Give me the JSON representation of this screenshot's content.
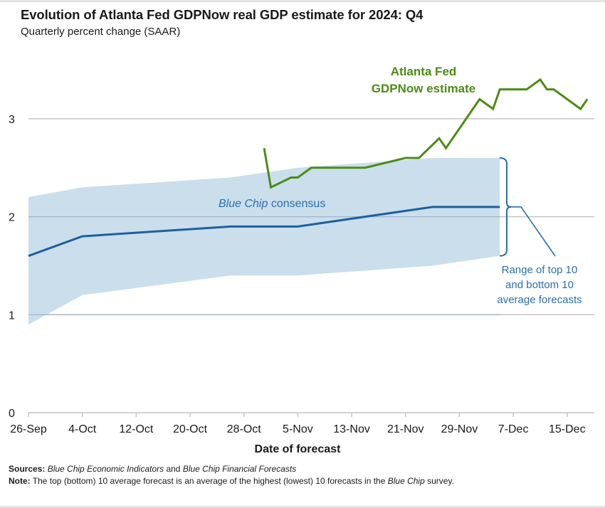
{
  "title": "Evolution of Atlanta Fed GDPNow real GDP estimate for 2024: Q4",
  "subtitle": "Quarterly percent change (SAAR)",
  "footer": {
    "sources_label": "Sources:",
    "sources_italic_1": "Blue Chip Economic Indicators",
    "sources_and": " and ",
    "sources_italic_2": "Blue Chip Financial Forecasts",
    "note_label": "Note:",
    "note_text": " The top (bottom) 10 average forecast is an average of the highest (lowest) 10 forecasts in the ",
    "note_italic": "Blue Chip",
    "note_end": " survey."
  },
  "chart_data": {
    "type": "line",
    "title": "Evolution of Atlanta Fed GDPNow real GDP estimate for 2024: Q4",
    "subtitle": "Quarterly percent change (SAAR)",
    "xlabel": "Date of forecast",
    "ylabel": "",
    "x_ticks": [
      "26-Sep",
      "4-Oct",
      "12-Oct",
      "20-Oct",
      "28-Oct",
      "5-Nov",
      "13-Nov",
      "21-Nov",
      "29-Nov",
      "7-Dec",
      "15-Dec"
    ],
    "x_start_day": 0,
    "x_end_day": 84,
    "x_tick_step_days": 8,
    "x_unit": "days since 26-Sep",
    "y_ticks": [
      0,
      1,
      2,
      3
    ],
    "ylim": [
      0,
      3.6
    ],
    "grid": "horizontal",
    "series": [
      {
        "name": "Atlanta Fed GDPNow estimate",
        "label_lines": [
          "Atlanta Fed",
          "GDPNow estimate"
        ],
        "color": "#4c8c14",
        "points": [
          [
            35,
            2.7
          ],
          [
            36,
            2.3
          ],
          [
            39,
            2.4
          ],
          [
            40,
            2.4
          ],
          [
            42,
            2.5
          ],
          [
            50,
            2.5
          ],
          [
            56,
            2.6
          ],
          [
            58,
            2.6
          ],
          [
            61,
            2.8
          ],
          [
            62,
            2.7
          ],
          [
            67,
            3.2
          ],
          [
            69,
            3.1
          ],
          [
            70,
            3.3
          ],
          [
            74,
            3.3
          ],
          [
            76,
            3.4
          ],
          [
            77,
            3.3
          ],
          [
            78,
            3.3
          ],
          [
            82,
            3.1
          ],
          [
            83,
            3.2
          ]
        ]
      },
      {
        "name": "Blue Chip consensus",
        "label_italic": "Blue Chip",
        "label_rest": " consensus",
        "color": "#1f5f9e",
        "points": [
          [
            0,
            1.6
          ],
          [
            8,
            1.8
          ],
          [
            30,
            1.9
          ],
          [
            40,
            1.9
          ],
          [
            60,
            2.1
          ],
          [
            70,
            2.1
          ]
        ]
      }
    ],
    "band": {
      "name": "Range of top 10 and bottom 10 average forecasts",
      "label_lines": [
        "Range of top 10",
        "and bottom 10",
        "average forecasts"
      ],
      "color": "#c6dbea",
      "upper": [
        [
          0,
          2.2
        ],
        [
          8,
          2.3
        ],
        [
          30,
          2.4
        ],
        [
          40,
          2.5
        ],
        [
          60,
          2.6
        ],
        [
          70,
          2.6
        ]
      ],
      "lower": [
        [
          0,
          0.9
        ],
        [
          8,
          1.2
        ],
        [
          30,
          1.4
        ],
        [
          40,
          1.4
        ],
        [
          60,
          1.5
        ],
        [
          70,
          1.6
        ]
      ]
    },
    "annotation_color": "#2a6fad"
  }
}
